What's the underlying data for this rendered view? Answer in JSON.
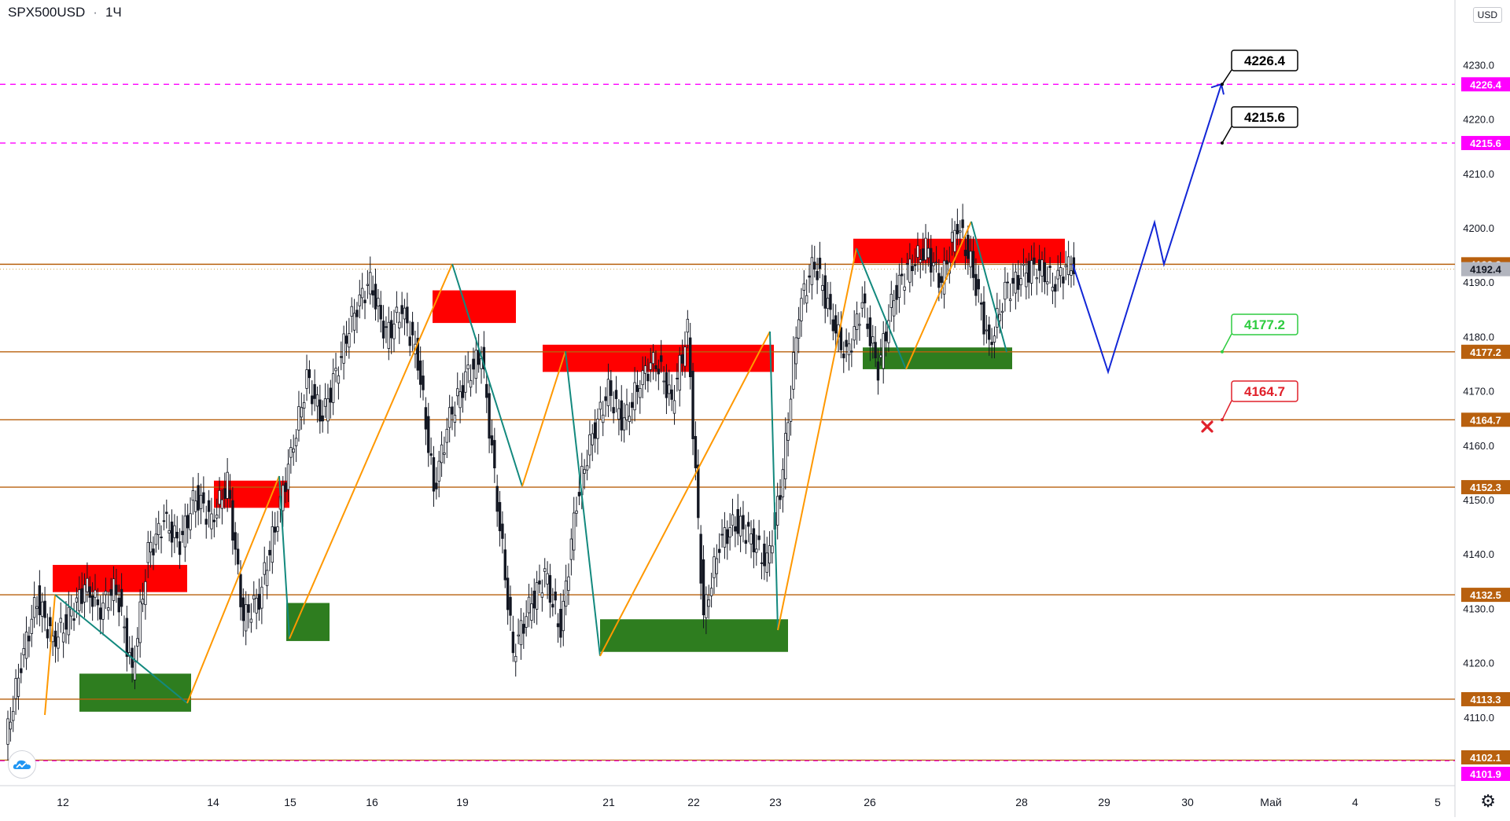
{
  "symbol": "SPX500USD",
  "interval": "1Ч",
  "currency": "USD",
  "icons": {
    "logo": "tradingview-cloud-logo",
    "settings": "gear-icon",
    "stop": "red-x-stop-marker"
  },
  "colors": {
    "level_line": "#b8600e",
    "level_label_bg": "#b8600e",
    "target_line": "#ff00ff",
    "red_zone": "#ff0000",
    "green_zone": "#2e7d1f",
    "zigzag_up": "#ff9800",
    "zigzag_down": "#13897e",
    "forecast": "#1226d6",
    "candle_up": "#26a69a",
    "candle_down": "#ef5350",
    "candle_color": "#131722",
    "price_now_bg": "#b2b5be"
  },
  "chart_data": {
    "type": "candlestick",
    "timeframe": "1H",
    "ylim": [
      4097,
      4240
    ],
    "y_ticks": [
      4110.0,
      4120.0,
      4130.0,
      4140.0,
      4150.0,
      4160.0,
      4170.0,
      4180.0,
      4190.0,
      4200.0,
      4210.0,
      4220.0,
      4230.0
    ],
    "x_ticks": [
      "12",
      "14",
      "15",
      "16",
      "19",
      "21",
      "22",
      "23",
      "26",
      "28",
      "29",
      "30",
      "Май",
      "4",
      "5"
    ],
    "horizontal_levels": [
      4193.3,
      4177.2,
      4164.7,
      4152.3,
      4132.5,
      4113.3
    ],
    "target_levels": [
      4226.4,
      4215.6
    ],
    "extra_price_labels": [
      {
        "value": "4102.1",
        "kind": "level"
      },
      {
        "value": "4101.9",
        "kind": "target"
      }
    ],
    "current_price": 4192.4,
    "callouts": [
      {
        "text": "4226.4",
        "value": 4226.4,
        "style": "target"
      },
      {
        "text": "4215.6",
        "value": 4215.6,
        "style": "target"
      },
      {
        "text": "4177.2",
        "value": 4177.2,
        "style": "entry"
      },
      {
        "text": "4164.7",
        "value": 4164.7,
        "style": "stop"
      }
    ],
    "price_path": [
      [
        4105,
        4098
      ],
      [
        4120,
        4110
      ],
      [
        4132,
        4126
      ],
      [
        4124,
        4117
      ],
      [
        4128,
        4120
      ],
      [
        4134,
        4128
      ],
      [
        4130,
        4126
      ],
      [
        4134,
        4128
      ],
      [
        4118,
        4110
      ],
      [
        4140,
        4134
      ],
      [
        4146,
        4140
      ],
      [
        4142,
        4138
      ],
      [
        4151,
        4143
      ],
      [
        4146,
        4142
      ],
      [
        4153,
        4147
      ],
      [
        4128,
        4122
      ],
      [
        4132,
        4126
      ],
      [
        4145,
        4138
      ],
      [
        4158,
        4150
      ],
      [
        4172,
        4165
      ],
      [
        4165,
        4162
      ],
      [
        4175,
        4167
      ],
      [
        4185,
        4178
      ],
      [
        4190,
        4186
      ],
      [
        4180,
        4175
      ],
      [
        4185,
        4182
      ],
      [
        4176,
        4172
      ],
      [
        4152,
        4154
      ],
      [
        4165,
        4160
      ],
      [
        4172,
        4168
      ],
      [
        4177,
        4172
      ],
      [
        4150,
        4152
      ],
      [
        4122,
        4123
      ],
      [
        4130,
        4126
      ],
      [
        4136,
        4130
      ],
      [
        4126,
        4127
      ],
      [
        4150,
        4147
      ],
      [
        4162,
        4160
      ],
      [
        4170,
        4168
      ],
      [
        4164,
        4165
      ],
      [
        4172,
        4170
      ],
      [
        4176,
        4174
      ],
      [
        4168,
        4162
      ],
      [
        4181,
        4179
      ],
      [
        4128,
        4130
      ],
      [
        4142,
        4138
      ],
      [
        4146,
        4142
      ],
      [
        4143,
        4140
      ],
      [
        4138,
        4136
      ],
      [
        4155,
        4150
      ],
      [
        4185,
        4178
      ],
      [
        4194,
        4190
      ],
      [
        4184,
        4180
      ],
      [
        4176,
        4174
      ],
      [
        4186,
        4183
      ],
      [
        4174,
        4176
      ],
      [
        4188,
        4184
      ],
      [
        4193,
        4190
      ],
      [
        4196,
        4194
      ],
      [
        4190,
        4188
      ],
      [
        4201,
        4199
      ],
      [
        4192,
        4191
      ],
      [
        4178,
        4180
      ],
      [
        4188,
        4186
      ],
      [
        4191,
        4189
      ],
      [
        4193,
        4192
      ],
      [
        4190,
        4191
      ],
      [
        4193,
        4192.4
      ]
    ],
    "forecast_path": [
      [
        4193.3,
        4173.5
      ],
      [
        4173.5,
        4201.0
      ],
      [
        4201.0,
        4193.3
      ],
      [
        4193.3,
        4226.4
      ]
    ],
    "supply_zones": [
      [
        4133,
        4138
      ],
      [
        4148.5,
        4153.5
      ],
      [
        4182.5,
        4188.5
      ],
      [
        4173.5,
        4178.5
      ],
      [
        4193.5,
        4198
      ]
    ],
    "demand_zones": [
      [
        4111,
        4118
      ],
      [
        4124,
        4131
      ],
      [
        4122,
        4128
      ],
      [
        4174,
        4178
      ]
    ]
  }
}
